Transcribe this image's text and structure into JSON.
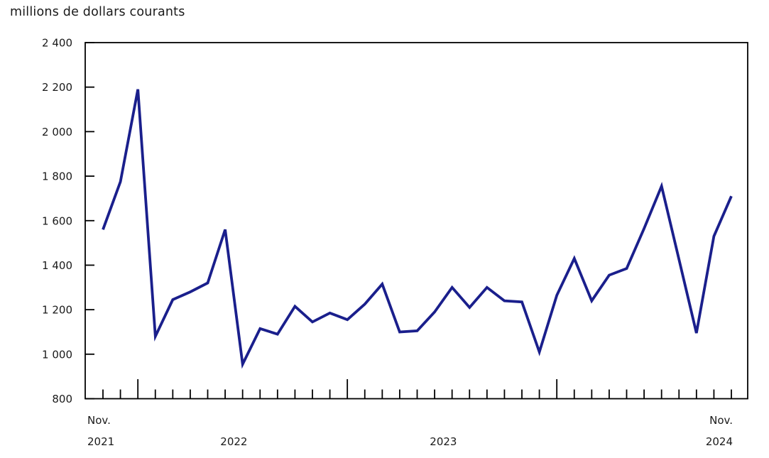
{
  "chart_data": {
    "type": "line",
    "title": "millions de dollars courants",
    "x": [
      "2021-11",
      "2021-12",
      "2022-01",
      "2022-02",
      "2022-03",
      "2022-04",
      "2022-05",
      "2022-06",
      "2022-07",
      "2022-08",
      "2022-09",
      "2022-10",
      "2022-11",
      "2022-12",
      "2023-01",
      "2023-02",
      "2023-03",
      "2023-04",
      "2023-05",
      "2023-06",
      "2023-07",
      "2023-08",
      "2023-09",
      "2023-10",
      "2023-11",
      "2023-12",
      "2024-01",
      "2024-02",
      "2024-03",
      "2024-04",
      "2024-05",
      "2024-06",
      "2024-07",
      "2024-08",
      "2024-09",
      "2024-10",
      "2024-11"
    ],
    "values": [
      1560,
      1775,
      2190,
      1080,
      1245,
      1280,
      1320,
      1560,
      955,
      1115,
      1090,
      1215,
      1145,
      1185,
      1155,
      1225,
      1315,
      1100,
      1105,
      1190,
      1300,
      1210,
      1300,
      1240,
      1235,
      1010,
      1265,
      1430,
      1240,
      1355,
      1385,
      1565,
      1755,
      1425,
      1095,
      1530,
      1710
    ],
    "xlabel": "",
    "ylabel": "millions de dollars courants",
    "ylim": [
      800,
      2400
    ],
    "y_tick_interval": 200,
    "y_tick_labels": [
      "800",
      "1 000",
      "1 200",
      "1 400",
      "1 600",
      "1 800",
      "2 000",
      "2 200",
      "2 400"
    ],
    "x_axis_labels": [
      {
        "lines": [
          "Nov.",
          "2021"
        ],
        "anchor": "start",
        "month_index": 0
      },
      {
        "lines": [
          "2022"
        ],
        "anchor": "middle",
        "month_index": 7.5
      },
      {
        "lines": [
          "2023"
        ],
        "anchor": "middle",
        "month_index": 19.5
      },
      {
        "lines": [
          "Nov.",
          "2024"
        ],
        "anchor": "end",
        "month_index": 36
      }
    ],
    "grid": "off",
    "legend": "none",
    "line_color": "#1a1f8c",
    "axis_color": "#000000",
    "text_color": "#1a1a1a"
  }
}
